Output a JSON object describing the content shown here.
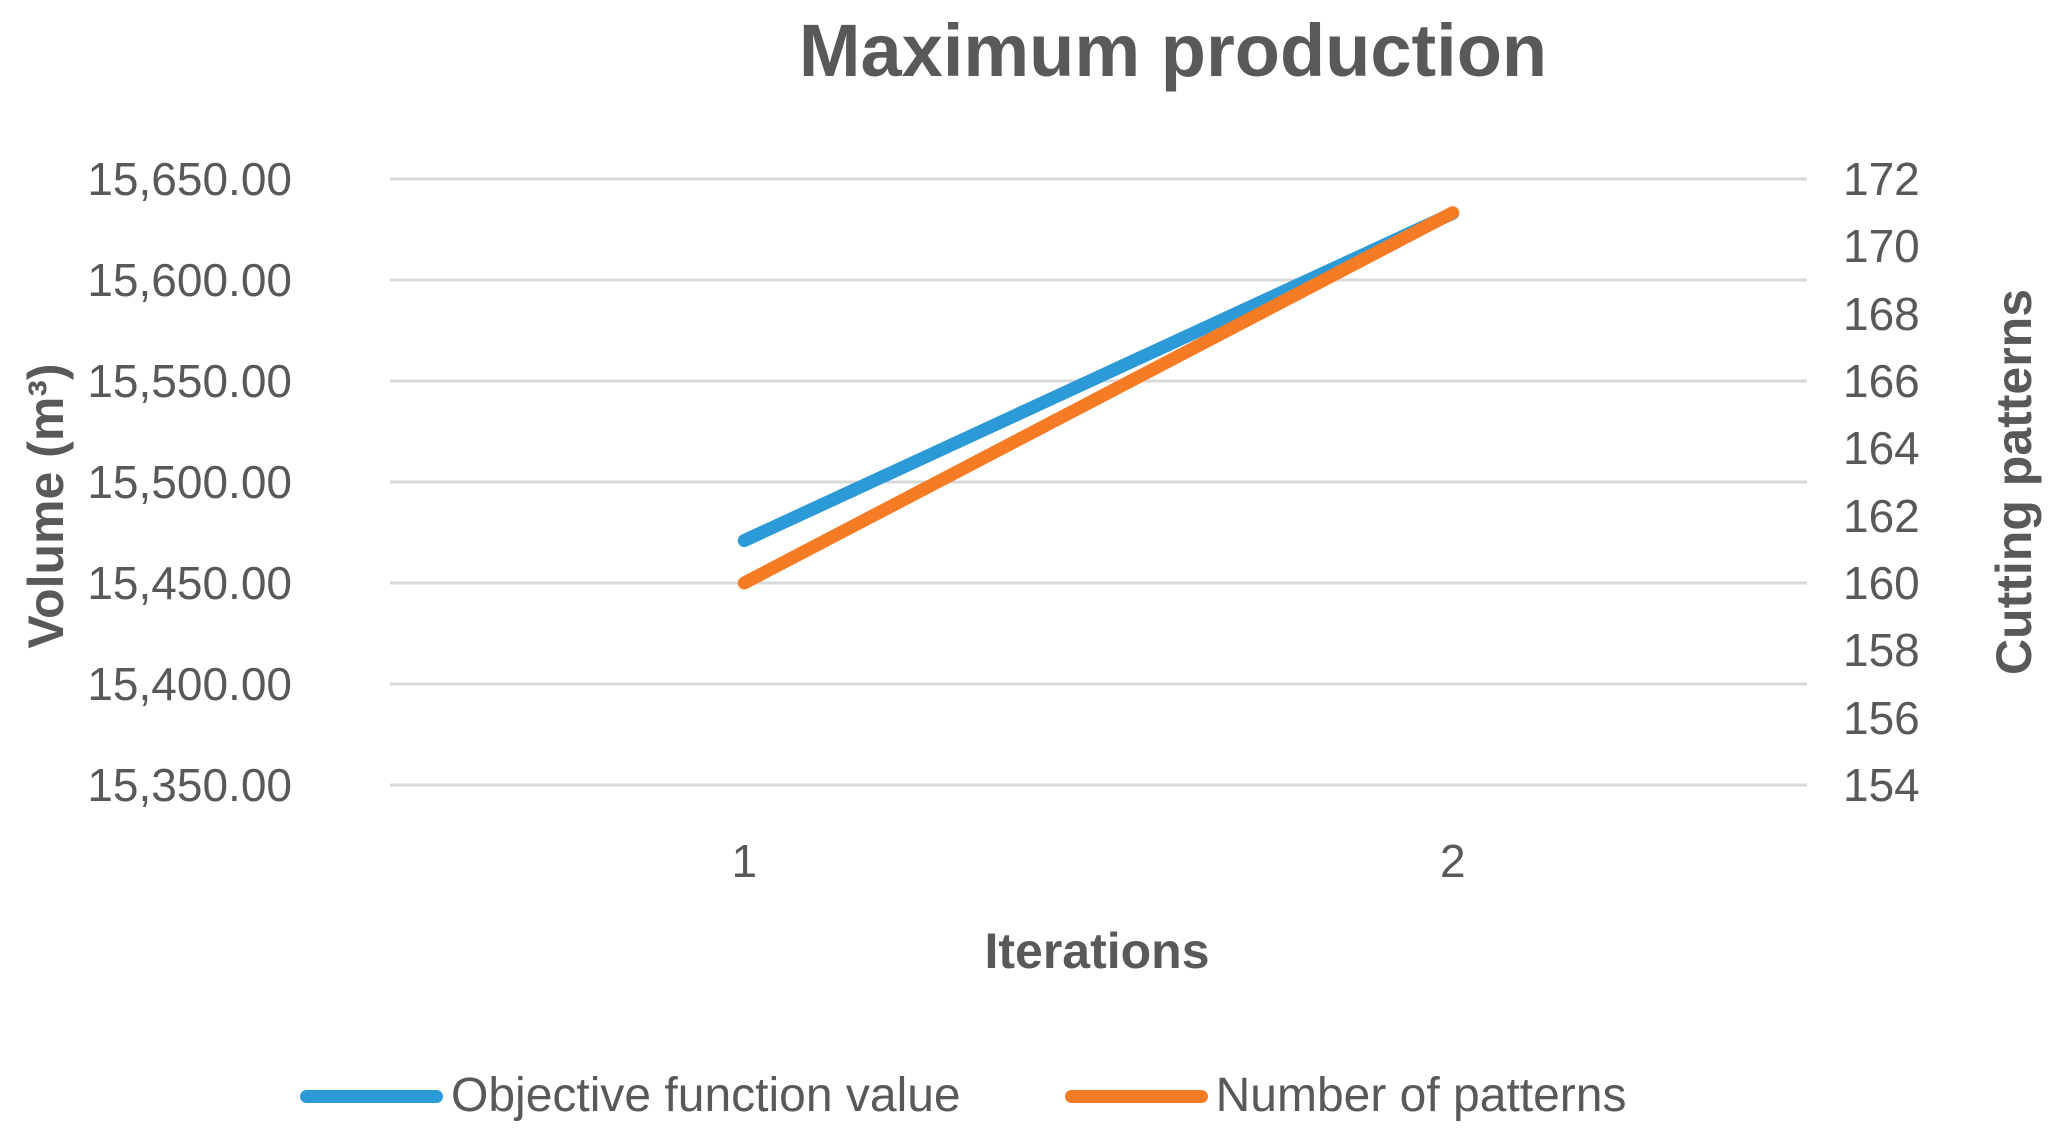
{
  "chart_data": {
    "type": "line",
    "title": "Maximum production",
    "grid": "horizontal",
    "legend_position": "bottom",
    "plot_bg": "#ffffff",
    "gridline_color": "#d9d9d9",
    "text_color": "#595959",
    "x": {
      "title": "Iterations",
      "categories": [
        "1",
        "2"
      ]
    },
    "y_left": {
      "title": "Volume (m³)",
      "min": 15350,
      "max": 15650,
      "tick_step": 50,
      "ticks_top_to_bottom": [
        "15,650.00",
        "15,600.00",
        "15,550.00",
        "15,500.00",
        "15,450.00",
        "15,400.00",
        "15,350.00"
      ]
    },
    "y_right": {
      "title": "Cutting patterns",
      "min": 154,
      "max": 172,
      "tick_step": 2,
      "ticks_top_to_bottom": [
        "172",
        "170",
        "168",
        "166",
        "164",
        "162",
        "160",
        "158",
        "156",
        "154"
      ]
    },
    "series": [
      {
        "name": "Objective function value",
        "axis": "left",
        "color": "#2b9ad7",
        "values": [
          15471,
          15633
        ]
      },
      {
        "name": "Number of patterns",
        "axis": "right",
        "color": "#f57c25",
        "values": [
          160,
          171
        ]
      }
    ]
  }
}
